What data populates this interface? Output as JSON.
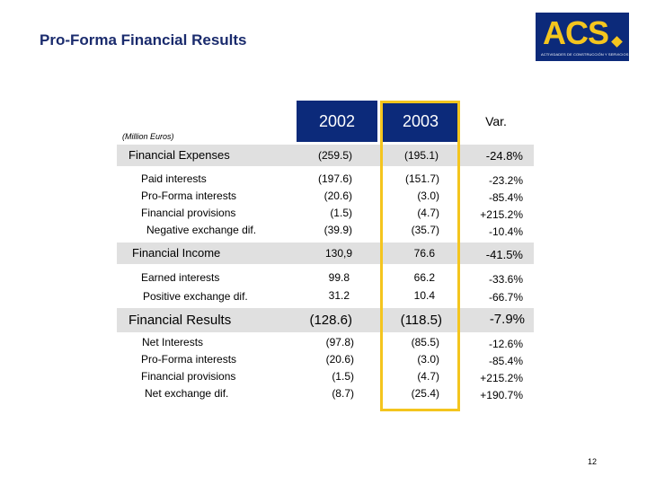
{
  "title": "Pro-Forma Financial Results",
  "logo": {
    "text": "ACS",
    "subtitle": "ACTIVIDADES DE CONSTRUCCIÓN Y SERVICIOS",
    "color": "#0c2a7a",
    "accent": "#f4c51e"
  },
  "units": "(Million Euros)",
  "headers": {
    "y2002": "2002",
    "y2003": "2003",
    "var": "Var."
  },
  "sections": {
    "expenses": {
      "label": "Financial Expenses",
      "v2002": "(259.5)",
      "v2003": "(195.1)",
      "var": "-24.8%",
      "rows": [
        {
          "label": "Paid interests",
          "v2002": "(197.6)",
          "v2003": "(151.7)",
          "var": "-23.2%"
        },
        {
          "label": "Pro-Forma interests",
          "v2002": "(20.6)",
          "v2003": "(3.0)",
          "var": "-85.4%"
        },
        {
          "label": "Financial provisions",
          "v2002": "(1.5)",
          "v2003": "(4.7)",
          "var": "+215.2%"
        },
        {
          "label": "Negative exchange dif.",
          "v2002": "(39.9)",
          "v2003": "(35.7)",
          "var": "-10.4%"
        }
      ]
    },
    "income": {
      "label": "Financial Income",
      "v2002": "130,9",
      "v2003": "76.6",
      "var": "-41.5%",
      "rows": [
        {
          "label": "Earned interests",
          "v2002": "99.8",
          "v2003": "66.2",
          "var": "-33.6%"
        },
        {
          "label": "Positive exchange dif.",
          "v2002": "31.2",
          "v2003": "10.4",
          "var": "-66.7%"
        }
      ]
    },
    "results": {
      "label": "Financial Results",
      "v2002": "(128.6)",
      "v2003": "(118.5)",
      "var": "-7.9%",
      "rows": [
        {
          "label": "Net Interests",
          "v2002": "(97.8)",
          "v2003": "(85.5)",
          "var": "-12.6%"
        },
        {
          "label": "Pro-Forma interests",
          "v2002": "(20.6)",
          "v2003": "(3.0)",
          "var": "-85.4%"
        },
        {
          "label": "Financial provisions",
          "v2002": "(1.5)",
          "v2003": "(4.7)",
          "var": "+215.2%"
        },
        {
          "label": "Net exchange dif.",
          "v2002": "(8.7)",
          "v2003": "(25.4)",
          "var": "+190.7%"
        }
      ]
    }
  },
  "page_number": "12"
}
